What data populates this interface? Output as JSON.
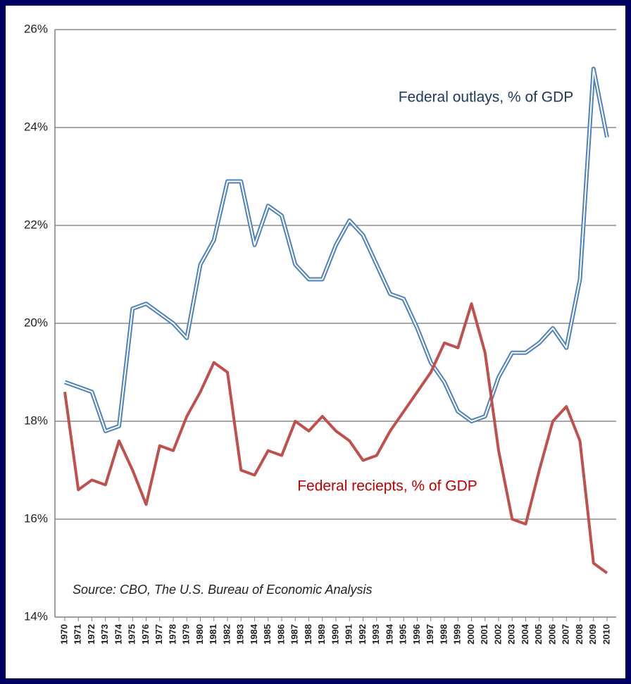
{
  "chart_data": {
    "type": "line",
    "categories": [
      "1970",
      "1971",
      "1972",
      "1973",
      "1974",
      "1975",
      "1976",
      "1977",
      "1978",
      "1979",
      "1980",
      "1981",
      "1982",
      "1983",
      "1984",
      "1985",
      "1986",
      "1987",
      "1988",
      "1989",
      "1990",
      "1991",
      "1992",
      "1993",
      "1994",
      "1995",
      "1996",
      "1997",
      "1998",
      "1999",
      "2000",
      "2001",
      "2002",
      "2003",
      "2004",
      "2005",
      "2006",
      "2007",
      "2008",
      "2009",
      "2010"
    ],
    "series": [
      {
        "name": "Federal outlays, % of GDP",
        "color": "#4f81bd",
        "style": "double",
        "values": [
          18.8,
          18.7,
          18.6,
          17.8,
          17.9,
          20.3,
          20.4,
          20.2,
          20.0,
          19.7,
          21.2,
          21.7,
          22.9,
          22.9,
          21.6,
          22.4,
          22.2,
          21.2,
          20.9,
          20.9,
          21.6,
          22.1,
          21.8,
          21.2,
          20.6,
          20.5,
          19.9,
          19.2,
          18.8,
          18.2,
          18.0,
          18.1,
          18.9,
          19.4,
          19.4,
          19.6,
          19.9,
          19.5,
          20.9,
          25.2,
          23.8
        ]
      },
      {
        "name": "Federal reciepts, % of GDP",
        "color": "#c0504d",
        "style": "solid",
        "values": [
          18.6,
          16.6,
          16.8,
          16.7,
          17.6,
          17.0,
          16.3,
          17.5,
          17.4,
          18.1,
          18.6,
          19.2,
          19.0,
          17.0,
          16.9,
          17.4,
          17.3,
          18.0,
          17.8,
          18.1,
          17.8,
          17.6,
          17.2,
          17.3,
          17.8,
          18.2,
          18.6,
          19.0,
          19.6,
          19.5,
          20.4,
          19.4,
          17.4,
          16.0,
          15.9,
          17.0,
          18.0,
          18.3,
          17.6,
          15.1,
          14.9
        ]
      }
    ],
    "annotation": "Source:  CBO, The U.S. Bureau of Economic Analysis",
    "ylim": [
      14,
      26
    ],
    "yticks": [
      {
        "value": 14,
        "label": "14%"
      },
      {
        "value": 16,
        "label": "16%"
      },
      {
        "value": 18,
        "label": "18%"
      },
      {
        "value": 20,
        "label": "20%"
      },
      {
        "value": 22,
        "label": "22%"
      },
      {
        "value": 24,
        "label": "24%"
      },
      {
        "value": 26,
        "label": "26%"
      }
    ],
    "grid": true
  }
}
